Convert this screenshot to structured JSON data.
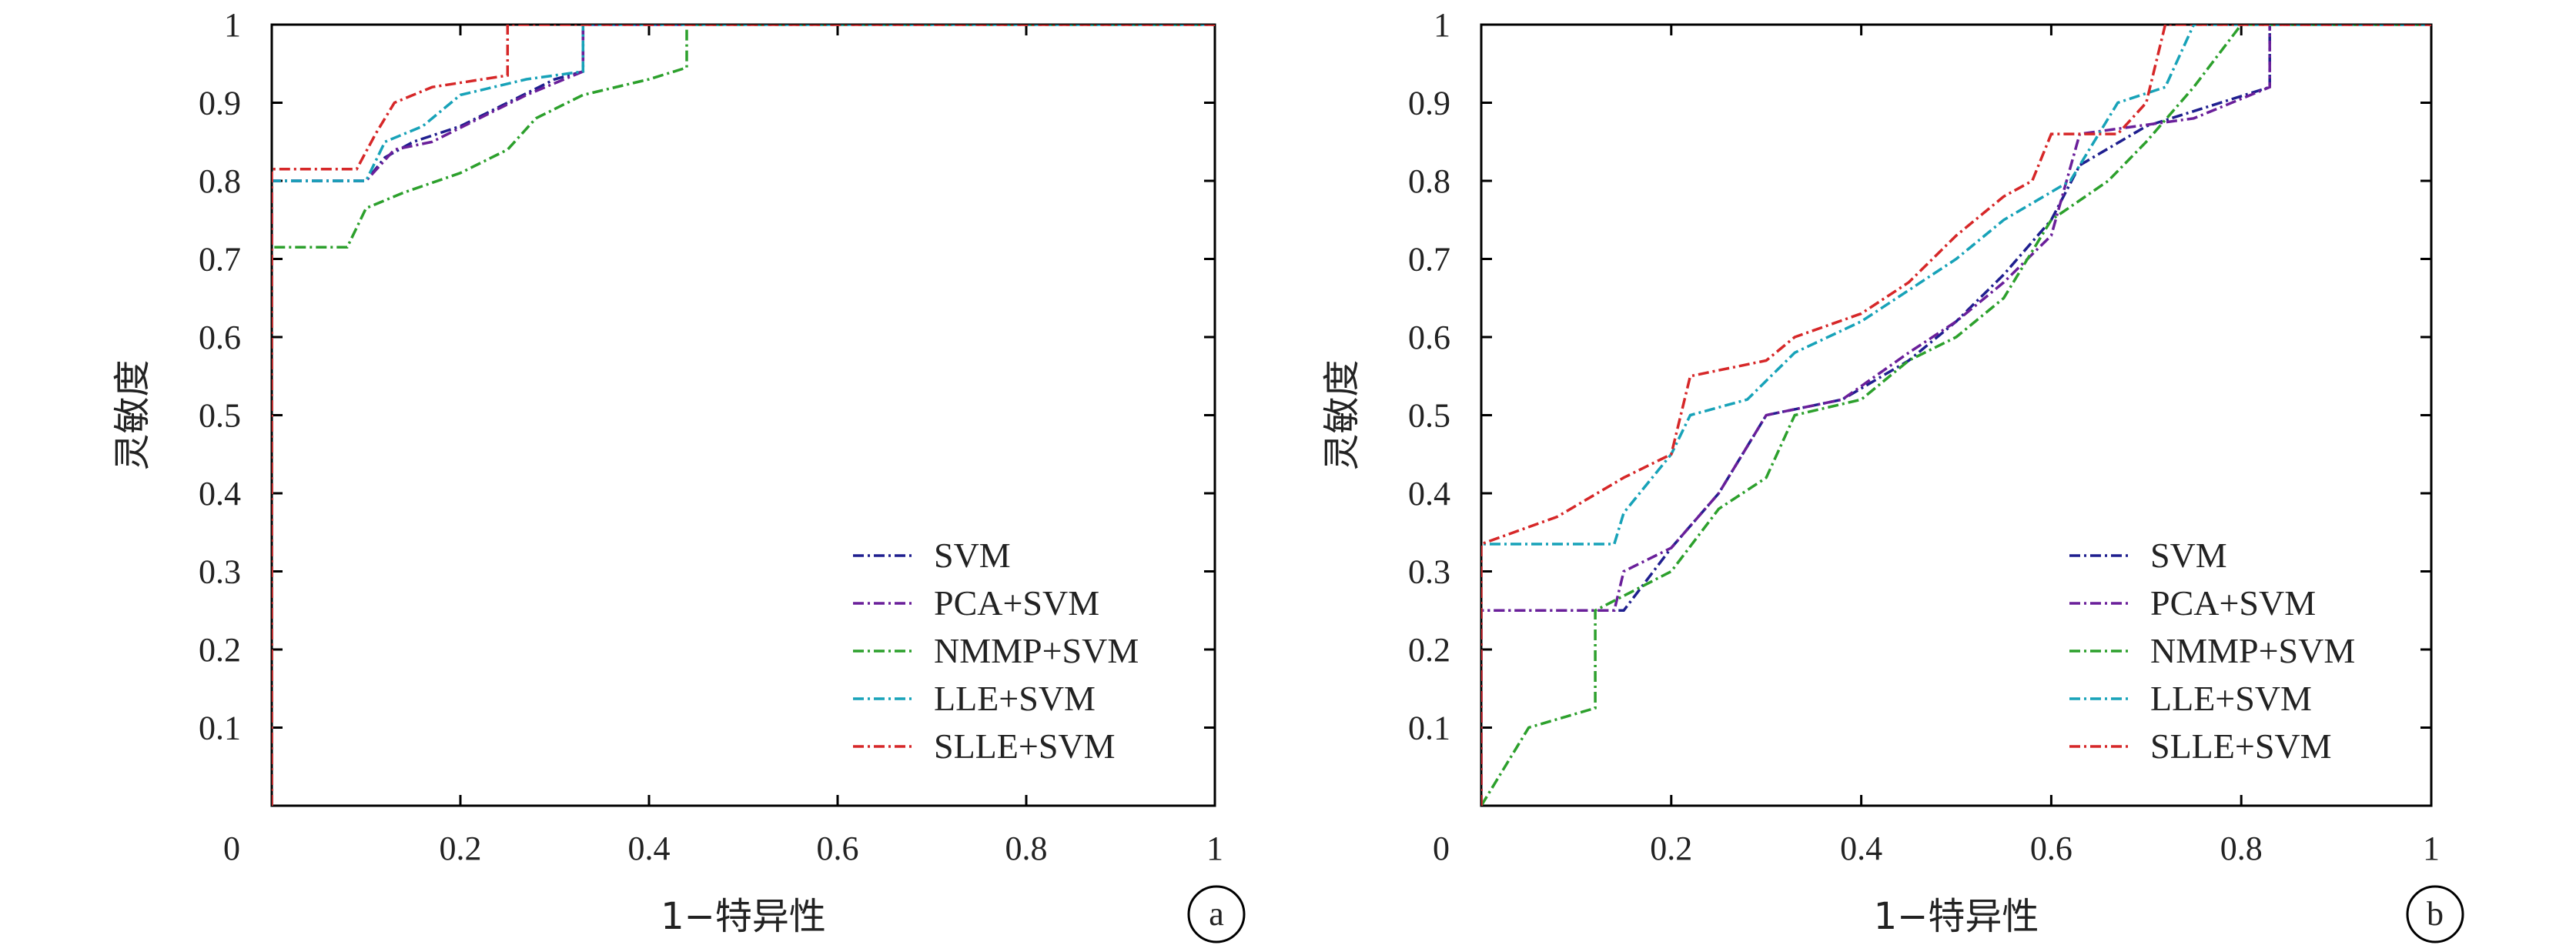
{
  "chart_data": [
    {
      "type": "line",
      "panel_label": "a",
      "xlabel": "1−特异性",
      "ylabel": "灵敏度",
      "xlim": [
        0,
        1
      ],
      "ylim": [
        0,
        1
      ],
      "x_ticks": [
        "0",
        "0.2",
        "0.4",
        "0.6",
        "0.8",
        "1"
      ],
      "y_ticks": [
        "0.1",
        "0.2",
        "0.3",
        "0.4",
        "0.5",
        "0.6",
        "0.7",
        "0.8",
        "0.9",
        "1"
      ],
      "grid": false,
      "legend_position": "bottom-right",
      "series": [
        {
          "name": "SVM",
          "color": "#1f1f8f",
          "points": [
            [
              0,
              0
            ],
            [
              0,
              0.8
            ],
            [
              0.1,
              0.8
            ],
            [
              0.12,
              0.83
            ],
            [
              0.15,
              0.85
            ],
            [
              0.2,
              0.87
            ],
            [
              0.25,
              0.9
            ],
            [
              0.3,
              0.93
            ],
            [
              0.33,
              0.94
            ],
            [
              0.33,
              1
            ],
            [
              1,
              1
            ]
          ]
        },
        {
          "name": "PCA+SVM",
          "color": "#6a1f9a",
          "points": [
            [
              0,
              0
            ],
            [
              0,
              0.8
            ],
            [
              0.1,
              0.8
            ],
            [
              0.13,
              0.84
            ],
            [
              0.17,
              0.85
            ],
            [
              0.22,
              0.88
            ],
            [
              0.27,
              0.91
            ],
            [
              0.33,
              0.94
            ],
            [
              0.33,
              1
            ],
            [
              1,
              1
            ]
          ]
        },
        {
          "name": "NMMP+SVM",
          "color": "#2ca02c",
          "points": [
            [
              0,
              0
            ],
            [
              0,
              0.715
            ],
            [
              0.08,
              0.715
            ],
            [
              0.1,
              0.765
            ],
            [
              0.14,
              0.785
            ],
            [
              0.2,
              0.81
            ],
            [
              0.25,
              0.84
            ],
            [
              0.28,
              0.88
            ],
            [
              0.33,
              0.91
            ],
            [
              0.4,
              0.93
            ],
            [
              0.44,
              0.945
            ],
            [
              0.44,
              1
            ],
            [
              1,
              1
            ]
          ]
        },
        {
          "name": "LLE+SVM",
          "color": "#17a2b8",
          "points": [
            [
              0,
              0
            ],
            [
              0,
              0.8
            ],
            [
              0.1,
              0.8
            ],
            [
              0.12,
              0.85
            ],
            [
              0.16,
              0.87
            ],
            [
              0.2,
              0.91
            ],
            [
              0.27,
              0.93
            ],
            [
              0.33,
              0.94
            ],
            [
              0.33,
              1
            ],
            [
              1,
              1
            ]
          ]
        },
        {
          "name": "SLLE+SVM",
          "color": "#d62728",
          "points": [
            [
              0,
              0
            ],
            [
              0,
              0.815
            ],
            [
              0.09,
              0.815
            ],
            [
              0.11,
              0.86
            ],
            [
              0.13,
              0.9
            ],
            [
              0.17,
              0.92
            ],
            [
              0.25,
              0.935
            ],
            [
              0.25,
              1
            ],
            [
              1,
              1
            ]
          ]
        }
      ]
    },
    {
      "type": "line",
      "panel_label": "b",
      "xlabel": "1−特异性",
      "ylabel": "灵敏度",
      "xlim": [
        0,
        1
      ],
      "ylim": [
        0,
        1
      ],
      "x_ticks": [
        "0",
        "0.2",
        "0.4",
        "0.6",
        "0.8",
        "1"
      ],
      "y_ticks": [
        "0.1",
        "0.2",
        "0.3",
        "0.4",
        "0.5",
        "0.6",
        "0.7",
        "0.8",
        "0.9",
        "1"
      ],
      "grid": false,
      "legend_position": "bottom-right",
      "series": [
        {
          "name": "SVM",
          "color": "#1f1f8f",
          "points": [
            [
              0,
              0
            ],
            [
              0,
              0.25
            ],
            [
              0.15,
              0.25
            ],
            [
              0.2,
              0.33
            ],
            [
              0.25,
              0.4
            ],
            [
              0.3,
              0.5
            ],
            [
              0.38,
              0.52
            ],
            [
              0.45,
              0.57
            ],
            [
              0.5,
              0.62
            ],
            [
              0.55,
              0.68
            ],
            [
              0.6,
              0.75
            ],
            [
              0.63,
              0.82
            ],
            [
              0.7,
              0.87
            ],
            [
              0.83,
              0.92
            ],
            [
              0.83,
              1
            ],
            [
              1,
              1
            ]
          ]
        },
        {
          "name": "PCA+SVM",
          "color": "#6a1f9a",
          "points": [
            [
              0,
              0
            ],
            [
              0,
              0.25
            ],
            [
              0.14,
              0.25
            ],
            [
              0.15,
              0.3
            ],
            [
              0.2,
              0.33
            ],
            [
              0.25,
              0.4
            ],
            [
              0.3,
              0.5
            ],
            [
              0.38,
              0.52
            ],
            [
              0.45,
              0.58
            ],
            [
              0.5,
              0.62
            ],
            [
              0.55,
              0.67
            ],
            [
              0.6,
              0.73
            ],
            [
              0.63,
              0.86
            ],
            [
              0.75,
              0.88
            ],
            [
              0.83,
              0.92
            ],
            [
              0.83,
              1
            ],
            [
              1,
              1
            ]
          ]
        },
        {
          "name": "NMMP+SVM",
          "color": "#2ca02c",
          "points": [
            [
              0,
              0
            ],
            [
              0.05,
              0.1
            ],
            [
              0.12,
              0.125
            ],
            [
              0.12,
              0.25
            ],
            [
              0.2,
              0.3
            ],
            [
              0.25,
              0.38
            ],
            [
              0.3,
              0.42
            ],
            [
              0.33,
              0.5
            ],
            [
              0.4,
              0.52
            ],
            [
              0.45,
              0.57
            ],
            [
              0.5,
              0.6
            ],
            [
              0.55,
              0.65
            ],
            [
              0.6,
              0.75
            ],
            [
              0.66,
              0.8
            ],
            [
              0.7,
              0.85
            ],
            [
              0.75,
              0.92
            ],
            [
              0.8,
              1
            ],
            [
              1,
              1
            ]
          ]
        },
        {
          "name": "LLE+SVM",
          "color": "#17a2b8",
          "points": [
            [
              0,
              0
            ],
            [
              0,
              0.335
            ],
            [
              0.14,
              0.335
            ],
            [
              0.15,
              0.375
            ],
            [
              0.2,
              0.45
            ],
            [
              0.22,
              0.5
            ],
            [
              0.28,
              0.52
            ],
            [
              0.33,
              0.58
            ],
            [
              0.4,
              0.62
            ],
            [
              0.45,
              0.66
            ],
            [
              0.5,
              0.7
            ],
            [
              0.55,
              0.75
            ],
            [
              0.62,
              0.8
            ],
            [
              0.67,
              0.9
            ],
            [
              0.72,
              0.92
            ],
            [
              0.75,
              1
            ],
            [
              1,
              1
            ]
          ]
        },
        {
          "name": "SLLE+SVM",
          "color": "#d62728",
          "points": [
            [
              0,
              0
            ],
            [
              0,
              0.335
            ],
            [
              0.08,
              0.37
            ],
            [
              0.15,
              0.42
            ],
            [
              0.2,
              0.45
            ],
            [
              0.22,
              0.55
            ],
            [
              0.3,
              0.57
            ],
            [
              0.33,
              0.6
            ],
            [
              0.4,
              0.63
            ],
            [
              0.45,
              0.67
            ],
            [
              0.5,
              0.73
            ],
            [
              0.55,
              0.78
            ],
            [
              0.58,
              0.8
            ],
            [
              0.6,
              0.86
            ],
            [
              0.67,
              0.86
            ],
            [
              0.7,
              0.9
            ],
            [
              0.72,
              1
            ],
            [
              1,
              1
            ]
          ]
        }
      ]
    }
  ]
}
